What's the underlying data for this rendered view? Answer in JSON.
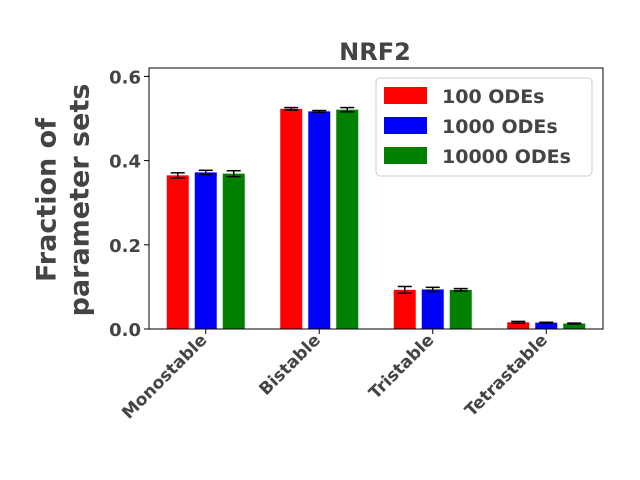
{
  "chart_data": {
    "type": "bar",
    "title": "NRF2",
    "xlabel": "",
    "ylabel": "Fraction of\nparameter sets",
    "categories": [
      "Monostable",
      "Bistable",
      "Tristable",
      "Tetrastable"
    ],
    "series": [
      {
        "name": "100 ODEs",
        "color": "#ff0000",
        "values": [
          0.365,
          0.523,
          0.093,
          0.016
        ],
        "errors": [
          0.006,
          0.003,
          0.008,
          0.002
        ]
      },
      {
        "name": "1000 ODEs",
        "color": "#0000ff",
        "values": [
          0.372,
          0.517,
          0.094,
          0.015
        ],
        "errors": [
          0.005,
          0.002,
          0.005,
          0.001
        ]
      },
      {
        "name": "10000 ODEs",
        "color": "#008000",
        "values": [
          0.369,
          0.521,
          0.093,
          0.013
        ],
        "errors": [
          0.007,
          0.005,
          0.003,
          0.001
        ]
      }
    ],
    "ylim": [
      0,
      0.62
    ],
    "yticks": [
      0.0,
      0.2,
      0.4,
      0.6
    ],
    "ytick_labels": [
      "0.0",
      "0.2",
      "0.4",
      "0.6"
    ],
    "grid": false,
    "legend_position": "top-right"
  }
}
